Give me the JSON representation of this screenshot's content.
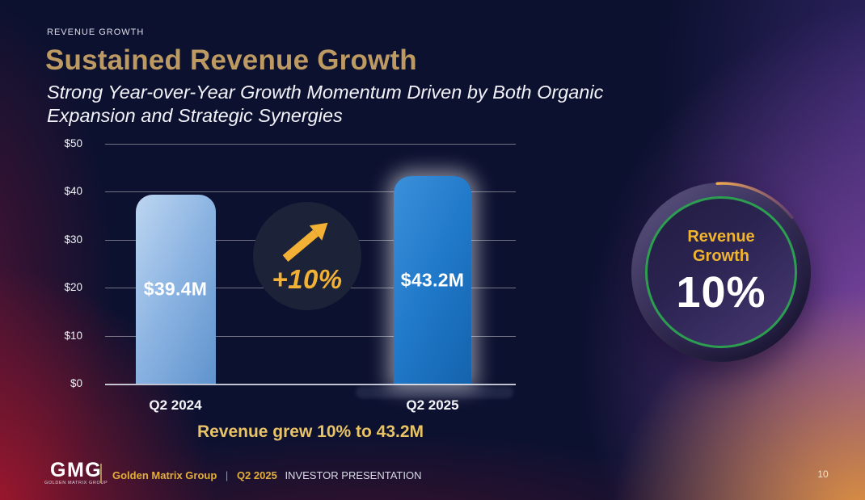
{
  "slide": {
    "eyebrow": "REVENUE GROWTH",
    "title": "Sustained Revenue Growth",
    "subtitle_line1": "Strong Year-over-Year Growth Momentum Driven by Both Organic",
    "subtitle_line2": "Expansion and Strategic Synergies",
    "page_number": "10"
  },
  "chart_data": {
    "type": "bar",
    "title": "",
    "xlabel": "",
    "ylabel": "",
    "categories": [
      "Q2 2024",
      "Q2 2025"
    ],
    "values": [
      39.4,
      43.2
    ],
    "value_labels": [
      "$39.4M",
      "$43.2M"
    ],
    "ylim": [
      0,
      50
    ],
    "yticks": [
      "$0",
      "$10",
      "$20",
      "$30",
      "$40",
      "$50"
    ],
    "ytick_values": [
      0,
      10,
      20,
      30,
      40,
      50
    ],
    "grid": true,
    "legend": false,
    "bar_colors": [
      "#8fb6e3",
      "#2079c9"
    ],
    "emphasized_category": "Q2 2025"
  },
  "growth_callout": {
    "delta_label": "+10%",
    "icon": "growth-arrow-icon"
  },
  "badge": {
    "label_line1": "Revenue",
    "label_line2": "Growth",
    "value": "10%"
  },
  "caption": "Revenue grew 10% to 43.2M",
  "footer": {
    "logo_text": "GMG",
    "logo_subtext": "GOLDEN MATRIX GROUP",
    "company": "Golden Matrix Group",
    "separator": "|",
    "period": "Q2 2025",
    "presentation_label": "INVESTOR PRESENTATION"
  },
  "colors": {
    "background": "#0d1130",
    "title_gold": "#bd9a62",
    "accent_gold": "#f2b135",
    "caption_gold": "#e9c466",
    "bar_light_blue": "#8fb6e3",
    "bar_blue": "#2079c9",
    "badge_ring_green": "#2d9e50",
    "badge_arc_orange": "#d98f45",
    "corner_red": "#b4182c",
    "corner_orange": "#e6963e",
    "corner_purple": "#9852bc",
    "text_white": "#f5f6fa"
  }
}
